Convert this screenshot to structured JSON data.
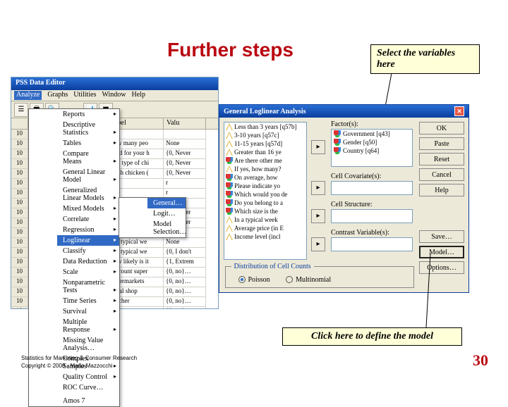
{
  "slide": {
    "title": "Further steps",
    "callout_select": "Select the variables here",
    "callout_define": "Click here to define the model",
    "footer_l1": "Statistics for Marketing & Consumer Research",
    "footer_l2": "Copyright © 2008 - Mario Mazzocchi",
    "page": "30"
  },
  "editor": {
    "title": "PSS Data Editor",
    "menus": [
      "Analyze",
      "Graphs",
      "Utilities",
      "Window",
      "Help"
    ],
    "headers": [
      "",
      "Name",
      "Label",
      "Valu"
    ],
    "rows": [
      [
        "10",
        "",
        "",
        ""
      ],
      [
        "10",
        "",
        "How many peo",
        "None"
      ],
      [
        "10",
        "",
        "Food for your h",
        "{0, Never"
      ],
      [
        "10",
        "",
        "Any type of chi",
        "{0, Never"
      ],
      [
        "10",
        "",
        "Fresh chicken (",
        "{0, Never"
      ],
      [
        "10",
        "",
        "",
        "r"
      ],
      [
        "10",
        "",
        "",
        "r"
      ],
      [
        "10",
        "",
        "",
        "ver"
      ],
      [
        "10",
        "",
        "Processed chi",
        "{0, Never"
      ],
      [
        "10",
        "",
        "Chicken as a",
        "{0, Never"
      ],
      [
        "10",
        "",
        "In a typical we",
        "None"
      ],
      [
        "10",
        "",
        "In a typical we",
        "None"
      ],
      [
        "10",
        "",
        "In a typical we",
        "{0, I don't"
      ],
      [
        "10",
        "",
        "How likely is it",
        "{1, Extrem"
      ],
      [
        "10",
        "",
        "Discount super",
        "{0, no}…"
      ],
      [
        "10",
        "",
        "Supermarkets",
        "{0, no}…"
      ],
      [
        "10",
        "",
        "Local shop",
        "{0, no}…"
      ],
      [
        "10",
        "",
        "Butcher",
        "{0, no}…"
      ],
      [
        "10",
        "",
        "Farmer",
        "{0, no}…"
      ],
      [
        "10",
        "",
        "Market",
        "{0, no}…"
      ]
    ]
  },
  "analyze_menu": [
    "Reports",
    "Descriptive Statistics",
    "Tables",
    "Compare Means",
    "General Linear Model",
    "Generalized Linear Models",
    "Mixed Models",
    "Correlate",
    "Regression",
    "Loglinear",
    "Classify",
    "Data Reduction",
    "Scale",
    "Nonparametric Tests",
    "Time Series",
    "Survival",
    "Multiple Response",
    "Missing Value Analysis…",
    "Complex Samples",
    "Quality Control",
    "ROC Curve…",
    "",
    "Amos 7"
  ],
  "analyze_sel_index": 9,
  "submenu": [
    "General…",
    "Logit…",
    "Model Selection…"
  ],
  "submenu_sel_index": 0,
  "dialog": {
    "title": "General Loglinear Analysis",
    "src": [
      {
        "t": "scale",
        "l": "Less than 3 years [q57b]"
      },
      {
        "t": "scale",
        "l": "3-10 years [q57c]"
      },
      {
        "t": "scale",
        "l": "11-15 years [q57d]"
      },
      {
        "t": "scale",
        "l": "Greater than 16 ye"
      },
      {
        "t": "nom",
        "l": "Are there other me"
      },
      {
        "t": "scale",
        "l": "If yes, how many?"
      },
      {
        "t": "nom",
        "l": "On average, how"
      },
      {
        "t": "nom",
        "l": "Please indicate yo"
      },
      {
        "t": "nom",
        "l": "Which would you de"
      },
      {
        "t": "nom",
        "l": "Do you belong to a"
      },
      {
        "t": "nom",
        "l": "Which size is the"
      },
      {
        "t": "scale",
        "l": "In a typical week"
      },
      {
        "t": "scale",
        "l": "Average price (in E"
      },
      {
        "t": "scale",
        "l": "Income level (incl"
      }
    ],
    "labels": {
      "factors": "Factor(s):",
      "cov": "Cell Covariate(s):",
      "cstr": "Cell Structure:",
      "cvar": "Contrast Variable(s):",
      "dist": "Distribution of Cell Counts",
      "poisson": "Poisson",
      "multinomial": "Multinomial"
    },
    "factors": [
      {
        "t": "nom",
        "l": "Government [q43]"
      },
      {
        "t": "nom",
        "l": "Gender [q50]"
      },
      {
        "t": "nom",
        "l": "Country [q64]"
      }
    ],
    "buttons": {
      "ok": "OK",
      "paste": "Paste",
      "reset": "Reset",
      "cancel": "Cancel",
      "help": "Help",
      "save": "Save…",
      "model": "Model…",
      "options": "Options…"
    }
  }
}
